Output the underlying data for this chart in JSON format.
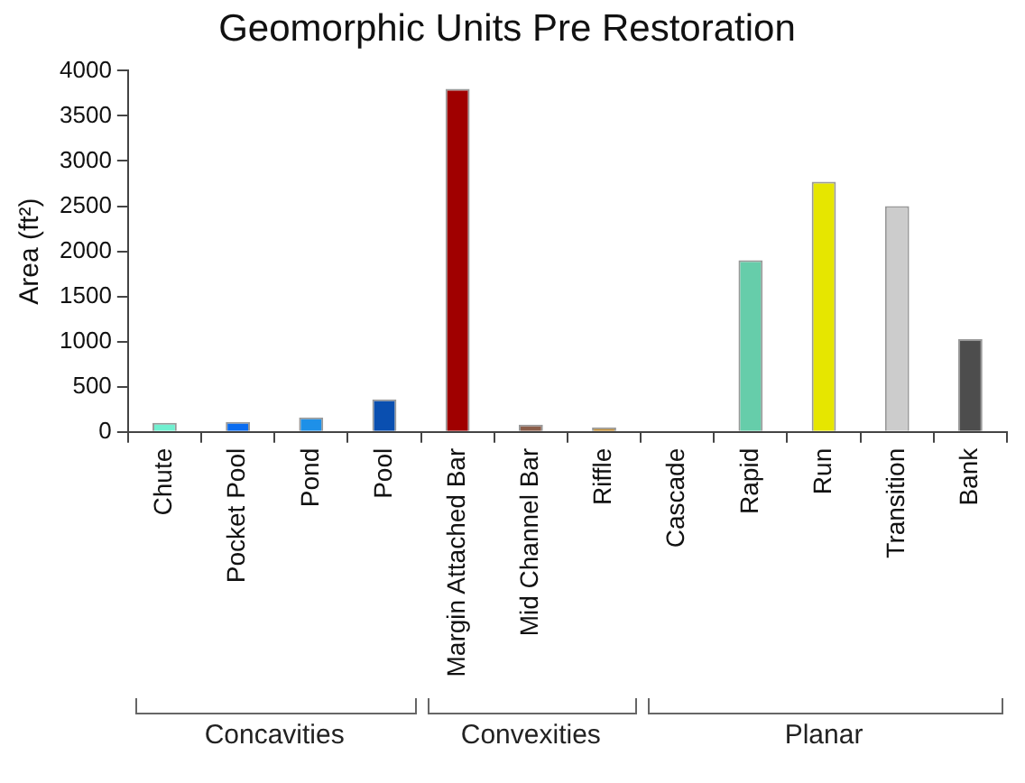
{
  "chart_data": {
    "type": "bar",
    "title": "Geomorphic Units Pre Restoration",
    "ylabel": "Area (ft²)",
    "categories": [
      "Chute",
      "Pocket Pool",
      "Pond",
      "Pool",
      "Margin Attached Bar",
      "Mid Channel Bar",
      "Riffle",
      "Cascade",
      "Rapid",
      "Run",
      "Transition",
      "Bank"
    ],
    "values": [
      100,
      110,
      160,
      360,
      3800,
      80,
      50,
      0,
      1900,
      2770,
      2500,
      1030
    ],
    "colors": [
      "#70f0d0",
      "#0a6cf0",
      "#1e90e8",
      "#0a4fb0",
      "#a00000",
      "#8b5e4a",
      "#c08a30",
      "#888888",
      "#66cdaa",
      "#e6e600",
      "#cccccc",
      "#4d4d4d"
    ],
    "ylim": [
      0,
      4000
    ],
    "yticks": [
      0,
      500,
      1000,
      1500,
      2000,
      2500,
      3000,
      3500,
      4000
    ],
    "grid": false,
    "legend": false,
    "annotations": [
      "Concavities",
      "Convexities",
      "Planar"
    ]
  }
}
